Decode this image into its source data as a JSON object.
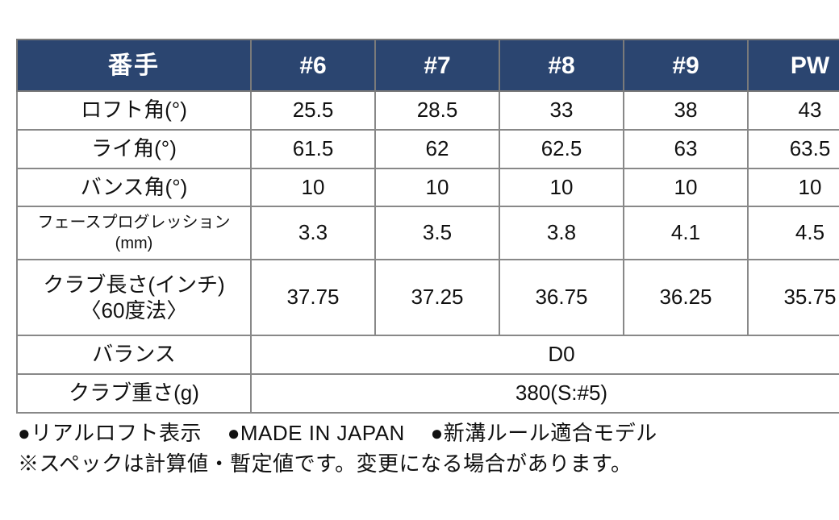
{
  "style": {
    "header_bg": "#2b4570",
    "header_fg": "#ffffff",
    "border_color": "#7a7a7a",
    "header_font_size": 30,
    "cell_font_size": 26,
    "small_label_font_size": 20
  },
  "table": {
    "type": "table",
    "header_label": "番手",
    "columns": [
      "#6",
      "#7",
      "#8",
      "#9",
      "PW"
    ],
    "rows": [
      {
        "label": "ロフト角(°)",
        "cells": [
          "25.5",
          "28.5",
          "33",
          "38",
          "43"
        ]
      },
      {
        "label": "ライ角(°)",
        "cells": [
          "61.5",
          "62",
          "62.5",
          "63",
          "63.5"
        ]
      },
      {
        "label": "バンス角(°)",
        "cells": [
          "10",
          "10",
          "10",
          "10",
          "10"
        ]
      },
      {
        "label": "フェースプログレッション(mm)",
        "small": true,
        "cells": [
          "3.3",
          "3.5",
          "3.8",
          "4.1",
          "4.5"
        ]
      },
      {
        "label": "クラブ長さ(インチ)\n〈60度法〉",
        "twoLine": true,
        "cells": [
          "37.75",
          "37.25",
          "36.75",
          "36.25",
          "35.75"
        ]
      },
      {
        "label": "バランス",
        "merged": "D0"
      },
      {
        "label": "クラブ重さ(g)",
        "merged": "380(S:#5)"
      }
    ]
  },
  "notes": {
    "bullets": [
      "●リアルロフト表示",
      "●MADE IN JAPAN",
      "●新溝ルール適合モデル"
    ],
    "caution": "※スペックは計算値・暫定値です。変更になる場合があります。"
  }
}
